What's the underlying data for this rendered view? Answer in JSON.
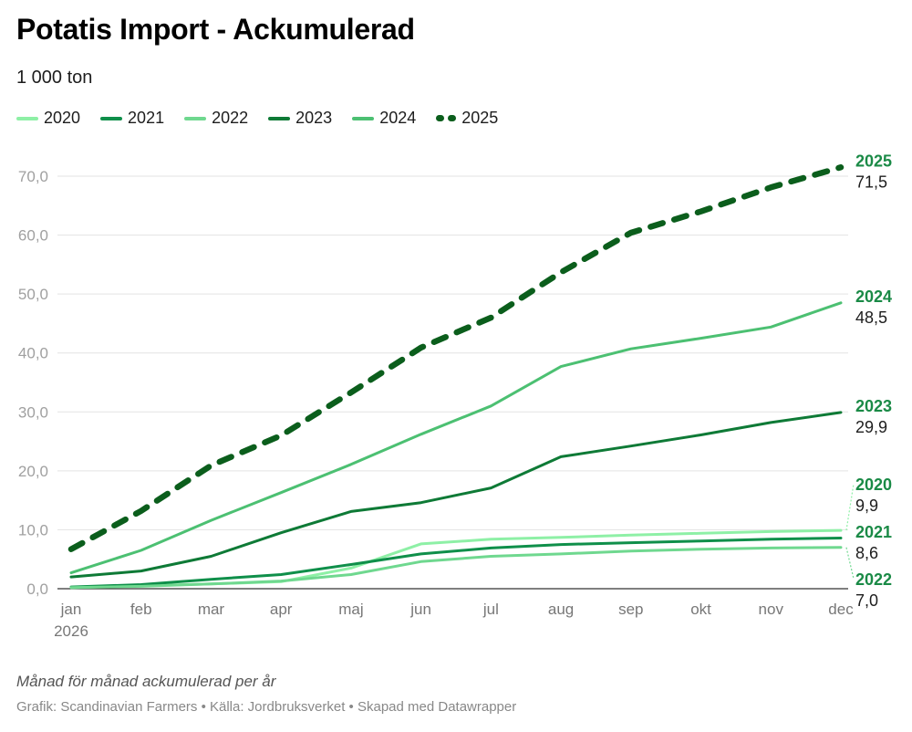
{
  "header": {
    "title": "Potatis Import - Ackumulerad",
    "subtitle": "1 000 ton"
  },
  "footer": {
    "note": "Månad för månad ackumulerad per år",
    "credits": "Grafik: Scandinavian Farmers • Källa: Jordbruksverket • Skapad med Datawrapper"
  },
  "chart_data": {
    "type": "line",
    "title": "Potatis Import - Ackumulerad",
    "subtitle": "1 000 ton",
    "xlabel": "",
    "ylabel": "1 000 ton",
    "categories": [
      "jan",
      "feb",
      "mar",
      "apr",
      "maj",
      "jun",
      "jul",
      "aug",
      "sep",
      "okt",
      "nov",
      "dec"
    ],
    "x_first_sublabel": "2026",
    "ylim": [
      0,
      70
    ],
    "yticks": [
      0,
      10,
      20,
      30,
      40,
      50,
      60,
      70
    ],
    "ytick_labels": [
      "0,0",
      "10,0",
      "20,0",
      "30,0",
      "40,0",
      "50,0",
      "60,0",
      "70,0"
    ],
    "grid": true,
    "legend_position": "top-left",
    "series": [
      {
        "name": "2020",
        "color": "#8ef0a6",
        "style": "solid",
        "values": [
          0.2,
          0.5,
          0.8,
          1.2,
          3.5,
          7.6,
          8.4,
          8.7,
          9.1,
          9.4,
          9.7,
          9.9
        ],
        "end_label": "2020",
        "end_value_label": "9,9"
      },
      {
        "name": "2021",
        "color": "#0f8f4a",
        "style": "solid",
        "values": [
          0.3,
          0.7,
          1.6,
          2.4,
          4.1,
          5.9,
          6.9,
          7.5,
          7.8,
          8.1,
          8.4,
          8.6
        ],
        "end_label": "2021",
        "end_value_label": "8,6"
      },
      {
        "name": "2022",
        "color": "#6fd88f",
        "style": "solid",
        "values": [
          0.2,
          0.4,
          0.8,
          1.3,
          2.4,
          4.6,
          5.5,
          5.9,
          6.4,
          6.7,
          6.9,
          7.0
        ],
        "end_label": "2022",
        "end_value_label": "7,0"
      },
      {
        "name": "2023",
        "color": "#0e7a36",
        "style": "solid",
        "values": [
          2.0,
          3.0,
          5.5,
          9.5,
          13.1,
          14.6,
          17.1,
          22.4,
          24.2,
          26.1,
          28.2,
          29.9
        ],
        "end_label": "2023",
        "end_value_label": "29,9"
      },
      {
        "name": "2024",
        "color": "#4cc072",
        "style": "solid",
        "values": [
          2.7,
          6.5,
          11.6,
          16.3,
          21.1,
          26.2,
          31.0,
          37.7,
          40.7,
          42.5,
          44.4,
          48.5
        ],
        "end_label": "2024",
        "end_value_label": "48,5"
      },
      {
        "name": "2025",
        "color": "#0b5e1c",
        "style": "dashed",
        "values": [
          6.7,
          13.2,
          20.9,
          26.0,
          33.3,
          40.9,
          46.0,
          53.7,
          60.4,
          64.0,
          68.1,
          71.5
        ],
        "end_label": "2025",
        "end_value_label": "71,5"
      }
    ],
    "label_color": "#1a8a46"
  }
}
